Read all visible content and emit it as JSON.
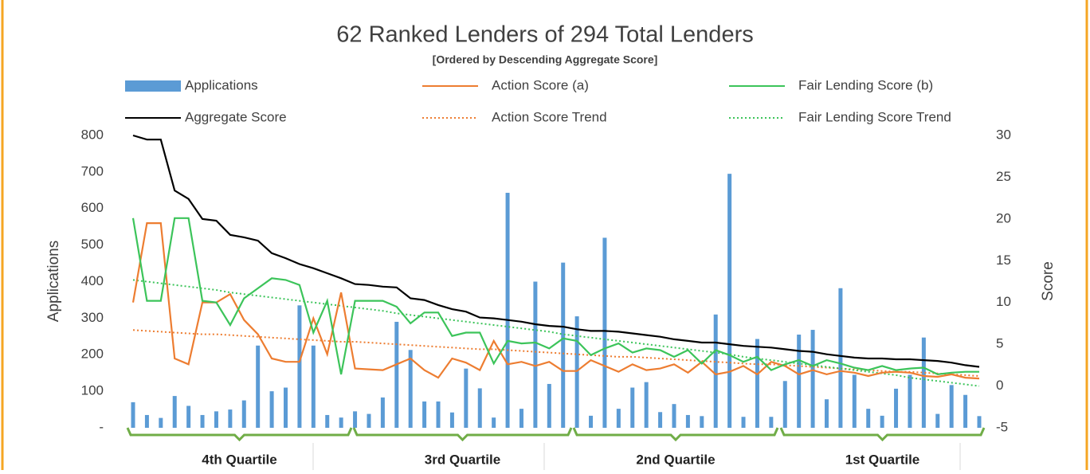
{
  "chart_data": {
    "type": "combo",
    "title": "62 Ranked Lenders of 294 Total Lenders",
    "subtitle": "[Ordered by Descending Aggregate Score]",
    "ylabel": "Applications",
    "y2label": "Score",
    "ylim": [
      0,
      800
    ],
    "yticks": [
      {
        "value": 0,
        "label": "-"
      },
      100,
      200,
      300,
      400,
      500,
      600,
      700,
      800
    ],
    "y2lim": [
      -5,
      30
    ],
    "y2ticks": [
      -5,
      0,
      5,
      10,
      15,
      20,
      25,
      30
    ],
    "quartiles": [
      "4th Quartile",
      "3rd Quartile",
      "2nd Quartile",
      "1st Quartile"
    ],
    "series": [
      {
        "name": "Applications",
        "kind": "bar",
        "color": "#5b9bd5",
        "values": [
          70,
          35,
          27,
          87,
          60,
          35,
          45,
          50,
          75,
          225,
          100,
          110,
          335,
          225,
          35,
          28,
          45,
          38,
          83,
          290,
          213,
          72,
          72,
          42,
          162,
          108,
          28,
          643,
          52,
          400,
          120,
          452,
          305,
          33,
          520,
          52,
          110,
          125,
          43,
          65,
          35,
          32,
          310,
          695,
          30,
          243,
          30,
          128,
          255,
          268,
          78,
          382,
          145,
          52,
          33,
          107,
          145,
          247,
          38,
          117,
          90,
          32
        ]
      },
      {
        "name": "Action Score (a)",
        "kind": "line",
        "axis": "y2",
        "color": "#ed7d31",
        "values": [
          10,
          19.5,
          19.5,
          3.3,
          2.6,
          10,
          10,
          11,
          7.9,
          6.2,
          3.3,
          2.9,
          2.9,
          8.1,
          3.8,
          11.2,
          2.1,
          2,
          1.9,
          2.6,
          3.3,
          1.9,
          1,
          3.3,
          2.8,
          1.9,
          5.4,
          2.6,
          2.9,
          2.4,
          2.9,
          1.8,
          1.8,
          3.1,
          2.4,
          1.7,
          2.6,
          1.9,
          2.1,
          2.6,
          1.6,
          2.9,
          1.4,
          1.7,
          2.4,
          1.4,
          2.9,
          2.4,
          1.4,
          1.9,
          1.4,
          1.8,
          1.6,
          1.2,
          1.6,
          1.7,
          1.6,
          1.2,
          1.1,
          1.4,
          1,
          0.9
        ]
      },
      {
        "name": "Fair Lending Score (b)",
        "kind": "line",
        "axis": "y2",
        "color": "#3cc45a",
        "values": [
          20.1,
          10.2,
          10.2,
          20.1,
          20.1,
          10.2,
          10,
          7.3,
          10.5,
          11.7,
          12.9,
          12.7,
          12.1,
          6.4,
          10.2,
          1.4,
          10.2,
          10.2,
          10.2,
          9.5,
          7.5,
          8.8,
          8.8,
          6,
          6.4,
          6.4,
          2.7,
          5.4,
          5.1,
          5.2,
          4.5,
          5.7,
          5.4,
          3.7,
          4.5,
          5.1,
          4,
          4.5,
          4.3,
          3.5,
          4.3,
          2.7,
          4.3,
          3.7,
          2.9,
          3.5,
          1.9,
          2.6,
          3.1,
          2.4,
          3.1,
          2.7,
          2.2,
          1.9,
          2.4,
          1.9,
          2.1,
          2.2,
          1.4,
          1.6,
          1.7,
          1.7
        ]
      },
      {
        "name": "Aggregate Score",
        "kind": "line",
        "axis": "y2",
        "color": "#000000",
        "values": [
          30,
          29.5,
          29.5,
          23.4,
          22.4,
          20,
          19.8,
          18.1,
          17.8,
          17.4,
          15.9,
          15.3,
          14.6,
          14.1,
          13.5,
          12.9,
          12.2,
          12.1,
          11.9,
          11.8,
          10.5,
          10.3,
          9.7,
          9.2,
          8.9,
          8.2,
          8.1,
          7.9,
          7.7,
          7.4,
          7.2,
          7.1,
          6.8,
          6.6,
          6.6,
          6.5,
          6.3,
          6.1,
          5.9,
          5.6,
          5.4,
          5.2,
          5.2,
          5,
          4.8,
          4.7,
          4.6,
          4.4,
          4.2,
          4.1,
          3.8,
          3.6,
          3.4,
          3.3,
          3.3,
          3.2,
          3.2,
          3.1,
          3,
          2.8,
          2.5,
          2.3
        ]
      },
      {
        "name": "Action Score Trend",
        "kind": "line",
        "dash": true,
        "axis": "y2",
        "color": "#ed7d31",
        "values": [
          6.7,
          6.6,
          6.5,
          6.4,
          6.3,
          6.2,
          6.2,
          6.1,
          6.0,
          5.9,
          5.8,
          5.7,
          5.6,
          5.5,
          5.4,
          5.3,
          5.3,
          5.2,
          5.1,
          5.0,
          4.9,
          4.8,
          4.7,
          4.6,
          4.5,
          4.4,
          4.4,
          4.3,
          4.2,
          4.1,
          4.0,
          3.9,
          3.8,
          3.7,
          3.6,
          3.5,
          3.5,
          3.4,
          3.3,
          3.2,
          3.1,
          3.0,
          2.9,
          2.8,
          2.7,
          2.6,
          2.6,
          2.5,
          2.4,
          2.3,
          2.2,
          2.1,
          2.0,
          1.9,
          1.8,
          1.7,
          1.7,
          1.6,
          1.5,
          1.4,
          1.3,
          1.2
        ]
      },
      {
        "name": "Fair Lending Score Trend",
        "kind": "line",
        "dash": true,
        "axis": "y2",
        "color": "#3cc45a",
        "values": [
          12.7,
          12.5,
          12.3,
          12.1,
          11.9,
          11.7,
          11.5,
          11.2,
          11.0,
          10.8,
          10.6,
          10.4,
          10.2,
          10.0,
          9.8,
          9.6,
          9.4,
          9.2,
          9.0,
          8.7,
          8.5,
          8.3,
          8.1,
          7.9,
          7.7,
          7.5,
          7.3,
          7.1,
          6.9,
          6.7,
          6.5,
          6.2,
          6.0,
          5.8,
          5.6,
          5.4,
          5.2,
          5.0,
          4.8,
          4.6,
          4.4,
          4.2,
          4.0,
          3.8,
          3.5,
          3.3,
          3.1,
          2.9,
          2.7,
          2.5,
          2.3,
          2.1,
          1.9,
          1.7,
          1.5,
          1.3,
          1.0,
          0.8,
          0.6,
          0.4,
          0.2,
          0.0
        ]
      }
    ]
  }
}
